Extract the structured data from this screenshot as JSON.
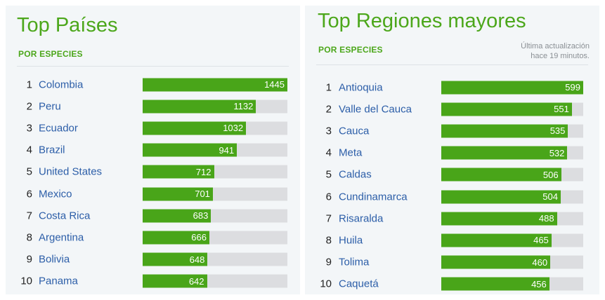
{
  "left_panel": {
    "title": "Top Países",
    "subtitle": "POR ESPECIES",
    "scale_max": 1445,
    "items": [
      {
        "rank": "1",
        "name": "Colombia",
        "value": 1445
      },
      {
        "rank": "2",
        "name": "Peru",
        "value": 1132
      },
      {
        "rank": "3",
        "name": "Ecuador",
        "value": 1032
      },
      {
        "rank": "4",
        "name": "Brazil",
        "value": 941
      },
      {
        "rank": "5",
        "name": "United States",
        "value": 712
      },
      {
        "rank": "6",
        "name": "Mexico",
        "value": 701
      },
      {
        "rank": "7",
        "name": "Costa Rica",
        "value": 683
      },
      {
        "rank": "8",
        "name": "Argentina",
        "value": 666
      },
      {
        "rank": "9",
        "name": "Bolivia",
        "value": 648
      },
      {
        "rank": "10",
        "name": "Panama",
        "value": 642
      }
    ]
  },
  "right_panel": {
    "title": "Top Regiones mayores",
    "subtitle": "POR ESPECIES",
    "updated_line1": "Última actualización",
    "updated_line2": "hace 19 minutos.",
    "scale_max": 599,
    "items": [
      {
        "rank": "1",
        "name": "Antioquia",
        "value": 599
      },
      {
        "rank": "2",
        "name": "Valle del Cauca",
        "value": 551
      },
      {
        "rank": "3",
        "name": "Cauca",
        "value": 535
      },
      {
        "rank": "4",
        "name": "Meta",
        "value": 532
      },
      {
        "rank": "5",
        "name": "Caldas",
        "value": 506
      },
      {
        "rank": "6",
        "name": "Cundinamarca",
        "value": 504
      },
      {
        "rank": "7",
        "name": "Risaralda",
        "value": 488
      },
      {
        "rank": "8",
        "name": "Huila",
        "value": 465
      },
      {
        "rank": "9",
        "name": "Tolima",
        "value": 460
      },
      {
        "rank": "10",
        "name": "Caquetá",
        "value": 456
      }
    ]
  },
  "colors": {
    "accent_green": "#4ca71b",
    "bar_fill": "#49a519",
    "bar_track": "#dcdde0",
    "link_blue": "#2c5ea8",
    "panel_bg": "#f3f6f8"
  }
}
